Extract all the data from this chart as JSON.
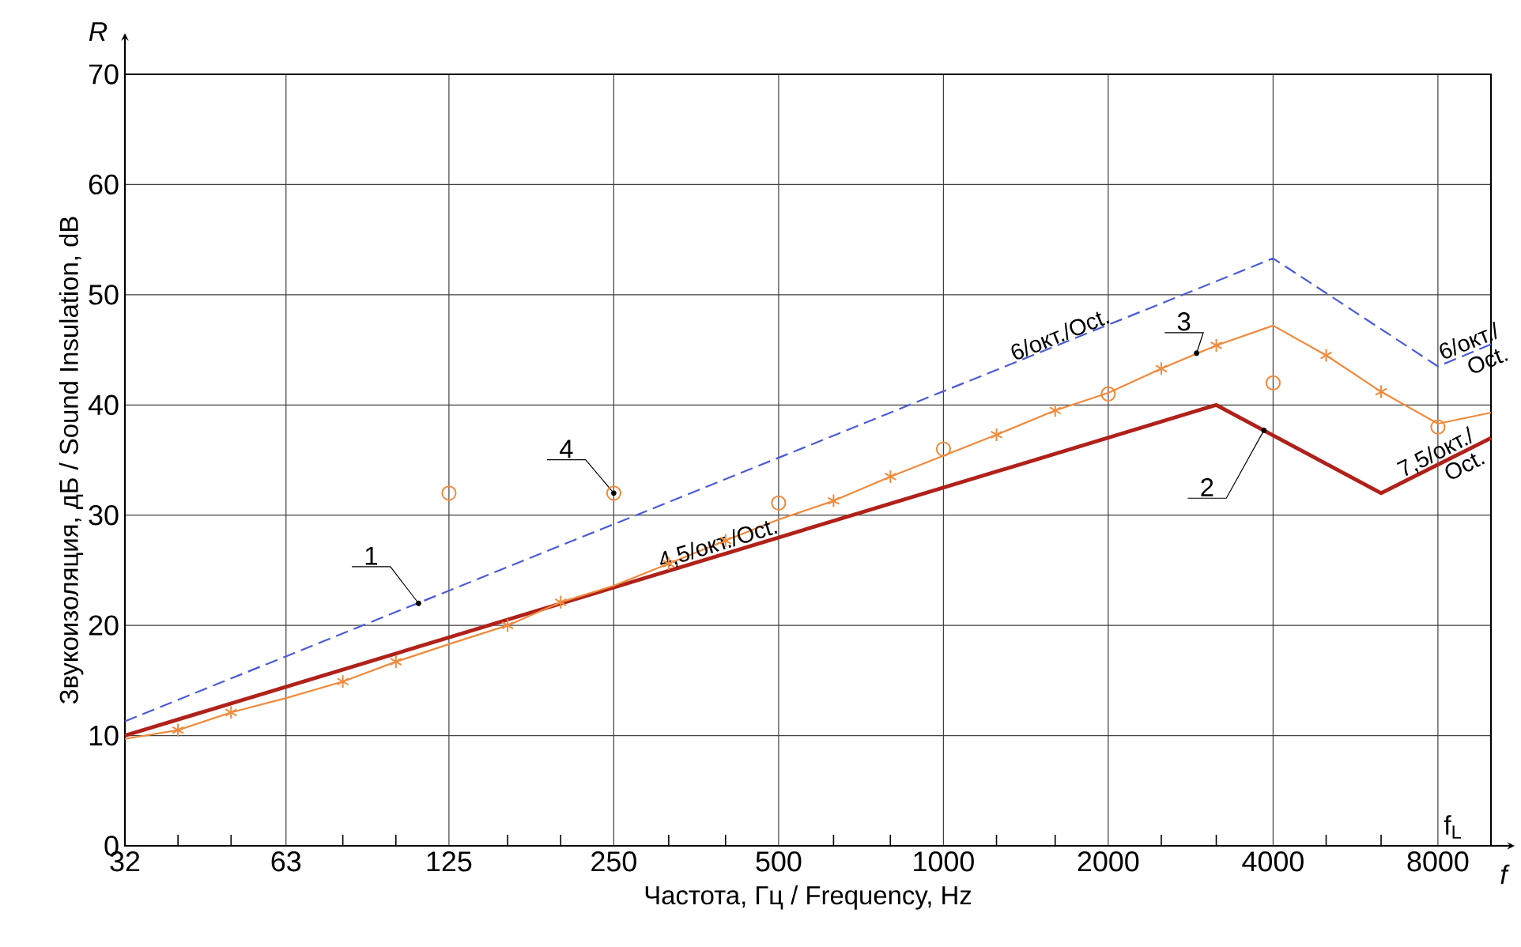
{
  "chart_data": {
    "type": "line",
    "xlabel": "Частота, Гц / Frequency, Hz",
    "ylabel": "Звукоизоляция, дБ / Sound Insulation, dB",
    "log": "x",
    "xlim": [
      32,
      10000
    ],
    "ylim": [
      0,
      70
    ],
    "xticks": [
      32,
      {
        "value": 40,
        "label": null
      },
      {
        "value": 50,
        "label": null
      },
      63,
      {
        "value": 80,
        "label": null
      },
      {
        "value": 100,
        "label": null
      },
      125,
      {
        "value": 160,
        "label": null
      },
      {
        "value": 200,
        "label": null
      },
      250,
      {
        "value": 315,
        "label": null
      },
      {
        "value": 400,
        "label": null
      },
      500,
      {
        "value": 630,
        "label": null
      },
      {
        "value": 800,
        "label": null
      },
      1000,
      {
        "value": 1250,
        "label": null
      },
      {
        "value": 1600,
        "label": null
      },
      2000,
      {
        "value": 2500,
        "label": null
      },
      {
        "value": 3150,
        "label": null
      },
      4000,
      {
        "value": 5000,
        "label": null
      },
      {
        "value": 6300,
        "label": null
      },
      8000
    ],
    "yticks": [
      0,
      10,
      20,
      30,
      40,
      50,
      60,
      70
    ],
    "grid": true,
    "series": [
      {
        "color": "#4a5bd6",
        "line_style": "dashed",
        "x": [
          32,
          4000,
          8000,
          10000
        ],
        "values": [
          11.3,
          53.3,
          43.5,
          45.5
        ]
      },
      {
        "color": "#b0211a",
        "line_style": "solid",
        "x": [
          32,
          3150,
          6300,
          10000
        ],
        "values": [
          10,
          40,
          32,
          37
        ]
      },
      {
        "color": "#f08a3c",
        "line_style": "solid",
        "x": [
          32,
          40,
          50,
          63,
          80,
          100,
          125,
          160,
          200,
          250,
          315,
          400,
          500,
          630,
          800,
          1000,
          1250,
          1600,
          2000,
          2500,
          3150,
          4000,
          5000,
          6300,
          8000,
          10000
        ],
        "values": [
          9.7,
          10.5,
          12.1,
          13.4,
          14.9,
          16.7,
          18.3,
          20.0,
          22.1,
          23.6,
          25.6,
          27.7,
          29.6,
          31.3,
          33.5,
          35.4,
          37.3,
          39.5,
          41.1,
          43.3,
          45.4,
          47.2,
          44.5,
          41.2,
          38.3,
          39.3
        ]
      },
      {
        "type": "scatter",
        "color": "#f08a3c",
        "marker": "cross",
        "x": [
          40,
          50,
          80,
          100,
          160,
          200,
          315,
          400,
          630,
          800,
          1250,
          1600,
          2500,
          3150,
          5000,
          6300
        ],
        "values": [
          10.5,
          12.1,
          14.9,
          16.7,
          20.0,
          22.1,
          25.6,
          27.7,
          31.3,
          33.5,
          37.3,
          39.5,
          43.3,
          45.4,
          44.5,
          41.2
        ]
      },
      {
        "type": "scatter",
        "color": "#f08a3c",
        "marker": "circle",
        "x": [
          125,
          250,
          500,
          1000,
          2000,
          4000,
          8000
        ],
        "values": [
          32,
          32,
          31.1,
          36,
          41,
          42,
          38
        ]
      }
    ],
    "annotations": [
      {
        "text": "1",
        "x": 110,
        "y": 22
      },
      {
        "text": "2",
        "x": 3850,
        "y": 37.7
      },
      {
        "text": "3",
        "x": 2900,
        "y": 44.7
      },
      {
        "text": "4",
        "x": 250,
        "y": 32
      },
      {
        "text": "6/окт./Oct.",
        "x": 1660,
        "y": 45.5
      },
      {
        "text": "4,5/окт./Oct.",
        "x": 394,
        "y": 26.3
      },
      {
        "text": "6/окт./ Oct.",
        "x": 9100,
        "y": 44.6
      },
      {
        "text": "7,5/окт./ Oct.",
        "x": 8000,
        "y": 34.6
      },
      "R",
      "f",
      "f$_{L}$"
    ]
  }
}
